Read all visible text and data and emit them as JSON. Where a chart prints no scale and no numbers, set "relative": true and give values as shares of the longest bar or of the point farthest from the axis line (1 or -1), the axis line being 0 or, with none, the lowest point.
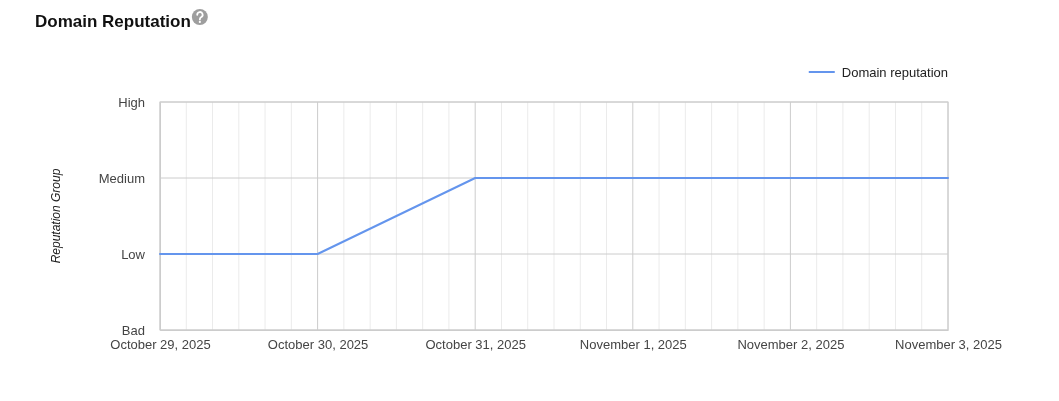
{
  "chart_data": {
    "type": "line",
    "title": "Domain Reputation",
    "ylabel": "Reputation Group",
    "x": [
      "2025-10-29",
      "2025-10-30",
      "2025-10-31",
      "2025-11-01",
      "2025-11-02",
      "2025-11-03"
    ],
    "relative": true,
    "y_categories": [
      "High",
      "Medium",
      "Low",
      "Bad"
    ],
    "series": [
      {
        "name": "Domain reputation",
        "color": "#6495ed",
        "values": [
          0.5,
          0.5,
          1,
          1,
          1,
          1
        ]
      }
    ],
    "xlim": [
      "2025-10-29",
      "2025-11-03"
    ],
    "xticks": [
      {
        "value": "2025-10-29",
        "label": "October 29, 2025"
      },
      {
        "value": "2025-10-29T04:00",
        "label": null
      },
      {
        "value": "2025-10-29T08:00",
        "label": null
      },
      {
        "value": "2025-10-29T12:00",
        "label": null
      },
      {
        "value": "2025-10-29T16:00",
        "label": null
      },
      {
        "value": "2025-10-29T20:00",
        "label": null
      },
      {
        "value": "2025-10-30",
        "label": "October 30, 2025"
      },
      {
        "value": "2025-10-30T04:00",
        "label": null
      },
      {
        "value": "2025-10-30T08:00",
        "label": null
      },
      {
        "value": "2025-10-30T12:00",
        "label": null
      },
      {
        "value": "2025-10-30T16:00",
        "label": null
      },
      {
        "value": "2025-10-30T20:00",
        "label": null
      },
      {
        "value": "2025-10-31",
        "label": "October 31, 2025"
      },
      {
        "value": "2025-10-31T04:00",
        "label": null
      },
      {
        "value": "2025-10-31T08:00",
        "label": null
      },
      {
        "value": "2025-10-31T12:00",
        "label": null
      },
      {
        "value": "2025-10-31T16:00",
        "label": null
      },
      {
        "value": "2025-10-31T20:00",
        "label": null
      },
      {
        "value": "2025-11-01",
        "label": "November 1, 2025"
      },
      {
        "value": "2025-11-01T04:00",
        "label": null
      },
      {
        "value": "2025-11-01T08:00",
        "label": null
      },
      {
        "value": "2025-11-01T12:00",
        "label": null
      },
      {
        "value": "2025-11-01T16:00",
        "label": null
      },
      {
        "value": "2025-11-01T20:00",
        "label": null
      },
      {
        "value": "2025-11-02",
        "label": "November 2, 2025"
      },
      {
        "value": "2025-11-02T04:00",
        "label": null
      },
      {
        "value": "2025-11-02T08:00",
        "label": null
      },
      {
        "value": "2025-11-02T12:00",
        "label": null
      },
      {
        "value": "2025-11-02T16:00",
        "label": null
      },
      {
        "value": "2025-11-02T20:00",
        "label": null
      },
      {
        "value": "2025-11-03",
        "label": "November 3, 2025"
      }
    ],
    "grid": true,
    "legend": "top right",
    "line_style": "solid"
  }
}
